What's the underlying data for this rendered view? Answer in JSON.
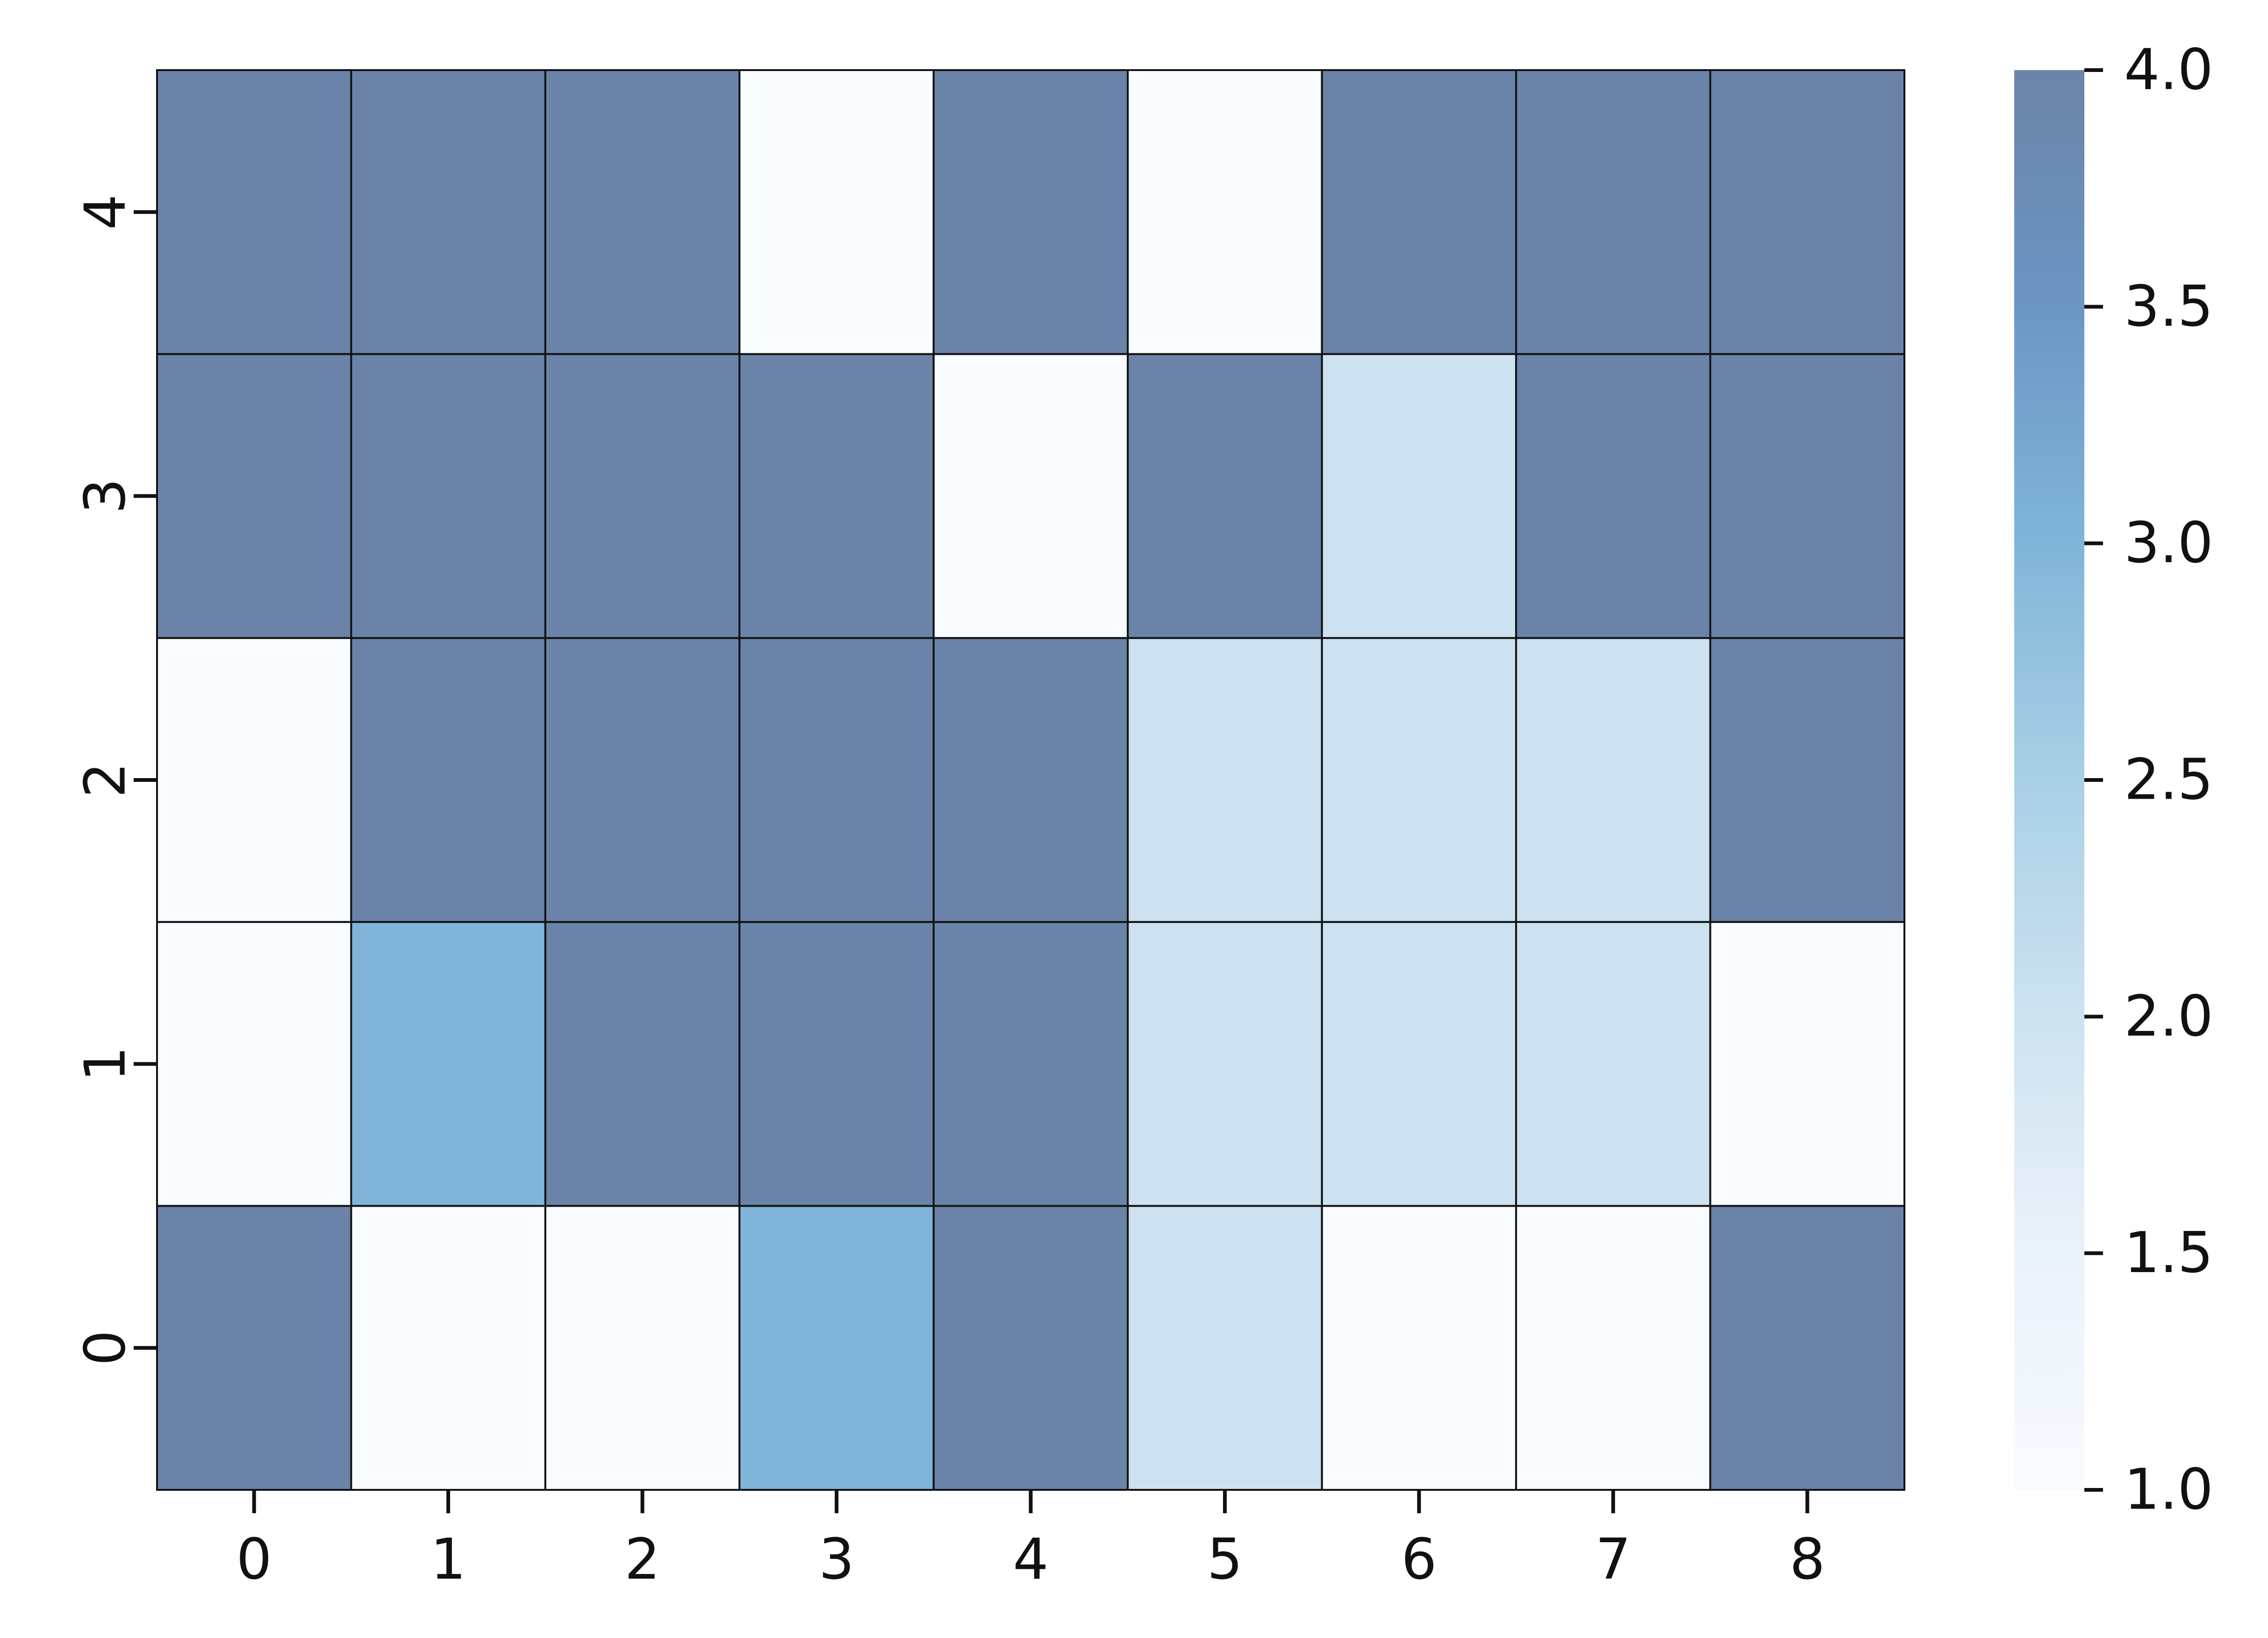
{
  "chart_data": {
    "type": "heatmap",
    "title": "",
    "xlabel": "",
    "ylabel": "",
    "x_categories": [
      "0",
      "1",
      "2",
      "3",
      "4",
      "5",
      "6",
      "7",
      "8"
    ],
    "y_categories": [
      "0",
      "1",
      "2",
      "3",
      "4"
    ],
    "values": [
      [
        4,
        1,
        1,
        3,
        4,
        2,
        1,
        1,
        4
      ],
      [
        1,
        3,
        4,
        4,
        4,
        2,
        2,
        2,
        1
      ],
      [
        1,
        4,
        4,
        4,
        4,
        2,
        2,
        2,
        4
      ],
      [
        4,
        4,
        4,
        4,
        1,
        4,
        2,
        4,
        4
      ],
      [
        4,
        4,
        4,
        1,
        4,
        1,
        4,
        4,
        4
      ]
    ],
    "colorbar": {
      "min": 1.0,
      "max": 4.0,
      "ticks": [
        "1.0",
        "1.5",
        "2.0",
        "2.5",
        "3.0",
        "3.5",
        "4.0"
      ],
      "colors": [
        "#f8fbff",
        "#eaf2fa",
        "#cde2f0",
        "#a9d0e6",
        "#80b5d9",
        "#6b96c4",
        "#6b83a8"
      ]
    },
    "grid_line_color": "#111111"
  }
}
